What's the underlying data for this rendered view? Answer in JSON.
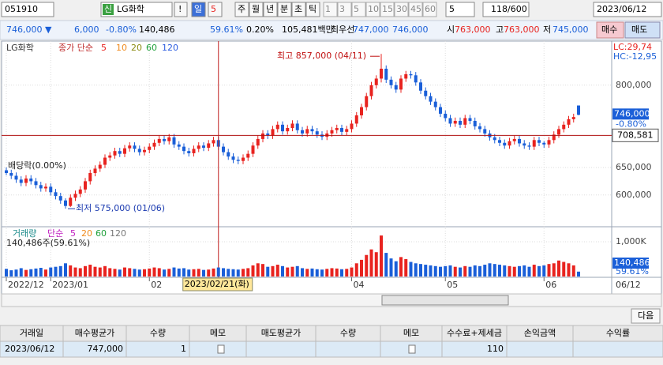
{
  "toolbar": {
    "code": "051910",
    "badge": "신",
    "name": "LG화학",
    "alert": "!",
    "periods": [
      "일",
      "5",
      "주",
      "월",
      "년",
      "분",
      "초",
      "틱"
    ],
    "minutes": [
      "1",
      "3",
      "5",
      "10",
      "15",
      "30",
      "45",
      "60"
    ],
    "minute_select": "5",
    "count": "118/600",
    "date": "2023/06/12"
  },
  "quote": {
    "price": "746,000 ▼",
    "change": "6,000",
    "change_pct": "-0.80%",
    "volume": "140,486",
    "volume_pct": "59.61%",
    "turnover": "0.20%",
    "amount": "105,481백만",
    "best_label": "최우선",
    "ask": "747,000",
    "bid": "746,000",
    "open_label": "시",
    "open": "763,000",
    "high_label": "고",
    "high": "763,000",
    "low_label": "저",
    "low": "745,000",
    "buy": "매수",
    "sell": "매도"
  },
  "chart": {
    "legend": {
      "name": "LG화학",
      "ma_label": "종가 단순",
      "ma": [
        {
          "label": "5",
          "color": "#e8231f"
        },
        {
          "label": "10",
          "color": "#f08a1c"
        },
        {
          "label": "20",
          "color": "#8a8a10"
        },
        {
          "label": "60",
          "color": "#1fa03a"
        },
        {
          "label": "120",
          "color": "#2b5ce0"
        }
      ]
    },
    "lc": "LC:29,74",
    "hc": "HC:-12,95",
    "high_note": "최고 857,000 (04/11)",
    "low_note": "최저 575,000 (01/06)",
    "dividend_note": "배당락(0.00%)",
    "ylim": [
      545000,
      876000
    ],
    "yticks": [
      {
        "value": 600000,
        "label": "600,000"
      },
      {
        "value": 650000,
        "label": "650,000"
      },
      {
        "value": 800000,
        "label": "800,000"
      }
    ],
    "last_price": {
      "value": 746000,
      "label": "746,000",
      "pct": "-0.80%"
    },
    "crosshair": {
      "date": "2023/02/21(화)",
      "price": 708581,
      "price_label": "708,581"
    },
    "up_color": "#e8231f",
    "down_color": "#1a5fd8",
    "categories": [
      "2022/12",
      null,
      null,
      null,
      null,
      null,
      null,
      null,
      null,
      "2023/01",
      null,
      null,
      null,
      null,
      null,
      null,
      null,
      null,
      null,
      null,
      null,
      null,
      null,
      null,
      null,
      null,
      null,
      null,
      null,
      "02",
      null,
      null,
      null,
      null,
      null,
      null,
      null,
      null,
      null,
      null,
      null,
      null,
      null,
      null,
      null,
      null,
      null,
      null,
      null,
      null,
      null,
      null,
      null,
      null,
      null,
      null,
      null,
      null,
      null,
      null,
      null,
      null,
      null,
      null,
      null,
      null,
      null,
      null,
      null,
      null,
      "04",
      null,
      null,
      null,
      null,
      null,
      null,
      null,
      null,
      null,
      null,
      null,
      null,
      null,
      null,
      null,
      null,
      null,
      null,
      "05",
      null,
      null,
      null,
      null,
      null,
      null,
      null,
      null,
      null,
      null,
      null,
      null,
      null,
      null,
      null,
      null,
      null,
      null,
      null,
      "06",
      null,
      null,
      null,
      null,
      null,
      null,
      null
    ],
    "last_date": "06/12",
    "ohlc": [
      [
        645000,
        650000,
        636000,
        640000
      ],
      [
        640000,
        646000,
        629000,
        635000
      ],
      [
        635000,
        641000,
        622000,
        628000
      ],
      [
        628000,
        634000,
        616000,
        622000
      ],
      [
        622000,
        636000,
        616000,
        630000
      ],
      [
        630000,
        636000,
        619000,
        625000
      ],
      [
        625000,
        631000,
        612000,
        618000
      ],
      [
        618000,
        624000,
        606000,
        612000
      ],
      [
        612000,
        621000,
        606000,
        615000
      ],
      [
        615000,
        621000,
        599000,
        605000
      ],
      [
        605000,
        611000,
        592000,
        598000
      ],
      [
        598000,
        604000,
        584000,
        590000
      ],
      [
        590000,
        594000,
        575000,
        580000
      ],
      [
        580000,
        601000,
        578000,
        595000
      ],
      [
        595000,
        608000,
        589000,
        602000
      ],
      [
        602000,
        616000,
        596000,
        610000
      ],
      [
        610000,
        631000,
        604000,
        625000
      ],
      [
        625000,
        646000,
        619000,
        640000
      ],
      [
        640000,
        654000,
        634000,
        648000
      ],
      [
        648000,
        661000,
        642000,
        655000
      ],
      [
        655000,
        674000,
        649000,
        668000
      ],
      [
        668000,
        678000,
        662000,
        672000
      ],
      [
        672000,
        686000,
        666000,
        680000
      ],
      [
        680000,
        686000,
        669000,
        675000
      ],
      [
        675000,
        691000,
        669000,
        685000
      ],
      [
        685000,
        696000,
        679000,
        690000
      ],
      [
        690000,
        696000,
        678000,
        684000
      ],
      [
        684000,
        690000,
        672000,
        678000
      ],
      [
        678000,
        688000,
        672000,
        682000
      ],
      [
        682000,
        694000,
        676000,
        688000
      ],
      [
        688000,
        701000,
        682000,
        695000
      ],
      [
        695000,
        708000,
        689000,
        702000
      ],
      [
        702000,
        708000,
        692000,
        698000
      ],
      [
        698000,
        711000,
        692000,
        705000
      ],
      [
        705000,
        711000,
        686000,
        692000
      ],
      [
        692000,
        698000,
        682000,
        688000
      ],
      [
        688000,
        694000,
        674000,
        680000
      ],
      [
        680000,
        686000,
        670000,
        676000
      ],
      [
        676000,
        690000,
        670000,
        684000
      ],
      [
        684000,
        696000,
        678000,
        690000
      ],
      [
        690000,
        696000,
        680000,
        686000
      ],
      [
        686000,
        700000,
        680000,
        694000
      ],
      [
        694000,
        706000,
        688000,
        700000
      ],
      [
        700000,
        706000,
        682000,
        688000
      ],
      [
        688000,
        694000,
        672000,
        678000
      ],
      [
        678000,
        684000,
        664000,
        670000
      ],
      [
        670000,
        676000,
        658000,
        664000
      ],
      [
        664000,
        670000,
        656000,
        662000
      ],
      [
        662000,
        674000,
        656000,
        668000
      ],
      [
        668000,
        681000,
        662000,
        675000
      ],
      [
        675000,
        696000,
        669000,
        690000
      ],
      [
        690000,
        708000,
        684000,
        702000
      ],
      [
        702000,
        718000,
        696000,
        712000
      ],
      [
        712000,
        718000,
        702000,
        708000
      ],
      [
        708000,
        726000,
        702000,
        720000
      ],
      [
        720000,
        734000,
        714000,
        728000
      ],
      [
        728000,
        734000,
        710000,
        716000
      ],
      [
        716000,
        728000,
        710000,
        722000
      ],
      [
        722000,
        736000,
        716000,
        730000
      ],
      [
        730000,
        736000,
        712000,
        718000
      ],
      [
        718000,
        724000,
        706000,
        712000
      ],
      [
        712000,
        726000,
        706000,
        720000
      ],
      [
        720000,
        726000,
        710000,
        716000
      ],
      [
        716000,
        722000,
        704000,
        710000
      ],
      [
        710000,
        716000,
        700000,
        706000
      ],
      [
        706000,
        718000,
        700000,
        712000
      ],
      [
        712000,
        724000,
        706000,
        718000
      ],
      [
        718000,
        728000,
        712000,
        722000
      ],
      [
        722000,
        728000,
        709000,
        715000
      ],
      [
        715000,
        726000,
        709000,
        720000
      ],
      [
        720000,
        736000,
        714000,
        730000
      ],
      [
        730000,
        751000,
        724000,
        745000
      ],
      [
        745000,
        766000,
        739000,
        760000
      ],
      [
        760000,
        786000,
        754000,
        780000
      ],
      [
        780000,
        806000,
        774000,
        800000
      ],
      [
        800000,
        818000,
        794000,
        812000
      ],
      [
        812000,
        857000,
        805000,
        830000
      ],
      [
        830000,
        836000,
        804000,
        810000
      ],
      [
        810000,
        816000,
        794000,
        800000
      ],
      [
        800000,
        806000,
        786000,
        792000
      ],
      [
        792000,
        818000,
        786000,
        812000
      ],
      [
        812000,
        826000,
        806000,
        820000
      ],
      [
        820000,
        826000,
        812000,
        818000
      ],
      [
        818000,
        824000,
        799000,
        805000
      ],
      [
        805000,
        811000,
        784000,
        790000
      ],
      [
        790000,
        796000,
        774000,
        780000
      ],
      [
        780000,
        786000,
        764000,
        770000
      ],
      [
        770000,
        776000,
        754000,
        760000
      ],
      [
        760000,
        766000,
        742000,
        748000
      ],
      [
        748000,
        754000,
        734000,
        740000
      ],
      [
        740000,
        746000,
        724000,
        730000
      ],
      [
        730000,
        741000,
        724000,
        735000
      ],
      [
        735000,
        741000,
        722000,
        728000
      ],
      [
        728000,
        746000,
        722000,
        740000
      ],
      [
        740000,
        746000,
        729000,
        735000
      ],
      [
        735000,
        741000,
        719000,
        725000
      ],
      [
        725000,
        731000,
        714000,
        720000
      ],
      [
        720000,
        726000,
        706000,
        712000
      ],
      [
        712000,
        718000,
        699000,
        705000
      ],
      [
        705000,
        711000,
        694000,
        700000
      ],
      [
        700000,
        706000,
        689000,
        695000
      ],
      [
        695000,
        701000,
        684000,
        690000
      ],
      [
        690000,
        704000,
        684000,
        698000
      ],
      [
        698000,
        708000,
        692000,
        702000
      ],
      [
        702000,
        708000,
        688000,
        694000
      ],
      [
        694000,
        700000,
        684000,
        690000
      ],
      [
        690000,
        696000,
        682000,
        688000
      ],
      [
        688000,
        706000,
        682000,
        700000
      ],
      [
        700000,
        706000,
        689000,
        695000
      ],
      [
        695000,
        698000,
        686000,
        692000
      ],
      [
        692000,
        706000,
        686000,
        700000
      ],
      [
        700000,
        716000,
        694000,
        710000
      ],
      [
        710000,
        726000,
        704000,
        720000
      ],
      [
        720000,
        734000,
        714000,
        728000
      ],
      [
        728000,
        744000,
        722000,
        738000
      ],
      [
        738000,
        748000,
        732000,
        742000
      ],
      [
        763000,
        763000,
        745000,
        746000
      ]
    ]
  },
  "volume": {
    "legend": {
      "name": "거래량",
      "ma_label": "단순",
      "ma": [
        {
          "label": "5",
          "color": "#c020c0"
        },
        {
          "label": "20",
          "color": "#f08a1c"
        },
        {
          "label": "60",
          "color": "#1fa03a"
        },
        {
          "label": "120",
          "color": "#777777"
        }
      ]
    },
    "summary": "140,486주(59.61%)",
    "ylim": [
      0,
      1364000
    ],
    "yticks": [
      {
        "value": 1000000,
        "label": "1,000K"
      }
    ],
    "last_label": "140,486",
    "last_pct": "59.61%",
    "values": [
      220000,
      180000,
      200000,
      240000,
      190000,
      210000,
      230000,
      250000,
      200000,
      260000,
      280000,
      300000,
      380000,
      320000,
      260000,
      240000,
      300000,
      340000,
      280000,
      260000,
      300000,
      240000,
      220000,
      200000,
      260000,
      240000,
      220000,
      200000,
      210000,
      230000,
      260000,
      240000,
      200000,
      220000,
      260000,
      230000,
      240000,
      200000,
      210000,
      220000,
      190000,
      200000,
      230000,
      260000,
      240000,
      220000,
      210000,
      200000,
      220000,
      240000,
      320000,
      380000,
      360000,
      280000,
      300000,
      340000,
      300000,
      260000,
      280000,
      300000,
      240000,
      220000,
      230000,
      210000,
      200000,
      220000,
      240000,
      230000,
      210000,
      220000,
      260000,
      380000,
      480000,
      620000,
      780000,
      700000,
      1180000,
      680000,
      520000,
      440000,
      560000,
      500000,
      420000,
      380000,
      360000,
      340000,
      320000,
      300000,
      280000,
      300000,
      320000,
      280000,
      260000,
      300000,
      280000,
      320000,
      300000,
      340000,
      380000,
      360000,
      340000,
      320000,
      300000,
      280000,
      300000,
      320000,
      280000,
      340000,
      300000,
      320000,
      360000,
      380000,
      460000,
      420000,
      380000,
      320000,
      140486
    ]
  },
  "next_button": "다음",
  "table": {
    "headers": [
      "거래일",
      "매수평균가",
      "수량",
      "메모",
      "매도평균가",
      "수량",
      "메모",
      "수수료+제세금",
      "손익금액",
      "수익률"
    ],
    "rows": [
      [
        "2023/06/12",
        "747,000",
        "1",
        "",
        "",
        "",
        "",
        "110",
        "",
        ""
      ]
    ]
  }
}
